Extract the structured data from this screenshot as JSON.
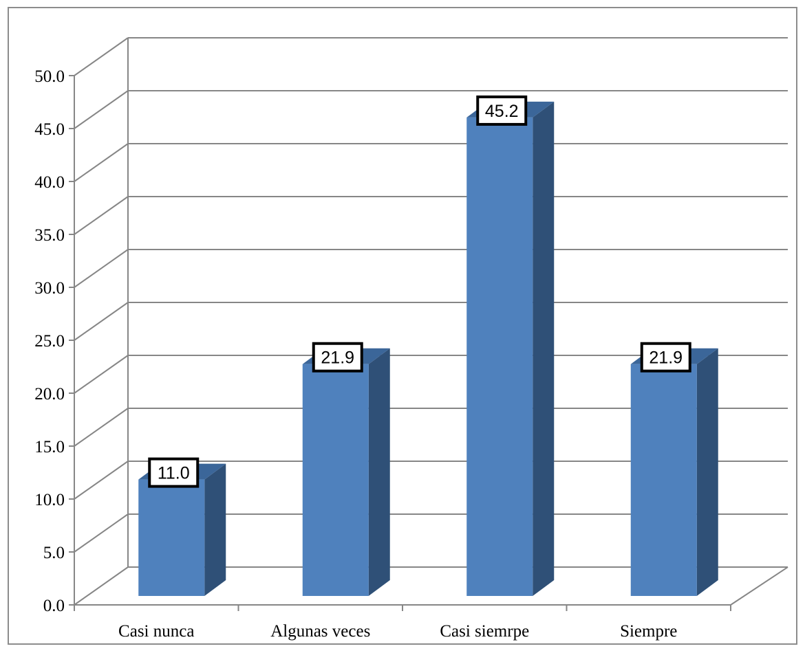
{
  "chart_data": {
    "type": "bar",
    "style": "3d-column",
    "categories": [
      "Casi nunca",
      "Algunas veces",
      "Casi siemrpe",
      "Siempre"
    ],
    "values": [
      11.0,
      21.9,
      45.2,
      21.9
    ],
    "data_labels": [
      "11.0",
      "21.9",
      "45.2",
      "21.9"
    ],
    "y_ticks": [
      "0.0",
      "5.0",
      "10.0",
      "15.0",
      "20.0",
      "25.0",
      "30.0",
      "35.0",
      "40.0",
      "45.0",
      "50.0"
    ],
    "ylim": [
      0,
      50
    ],
    "grid": true,
    "legend": "none",
    "colors": {
      "bar_front": "#4f81bd",
      "bar_side": "#2f5077",
      "bar_top": "#3b6699",
      "gridline": "#868686",
      "frame": "#8c8c8c",
      "label_box_border": "#000000"
    }
  }
}
